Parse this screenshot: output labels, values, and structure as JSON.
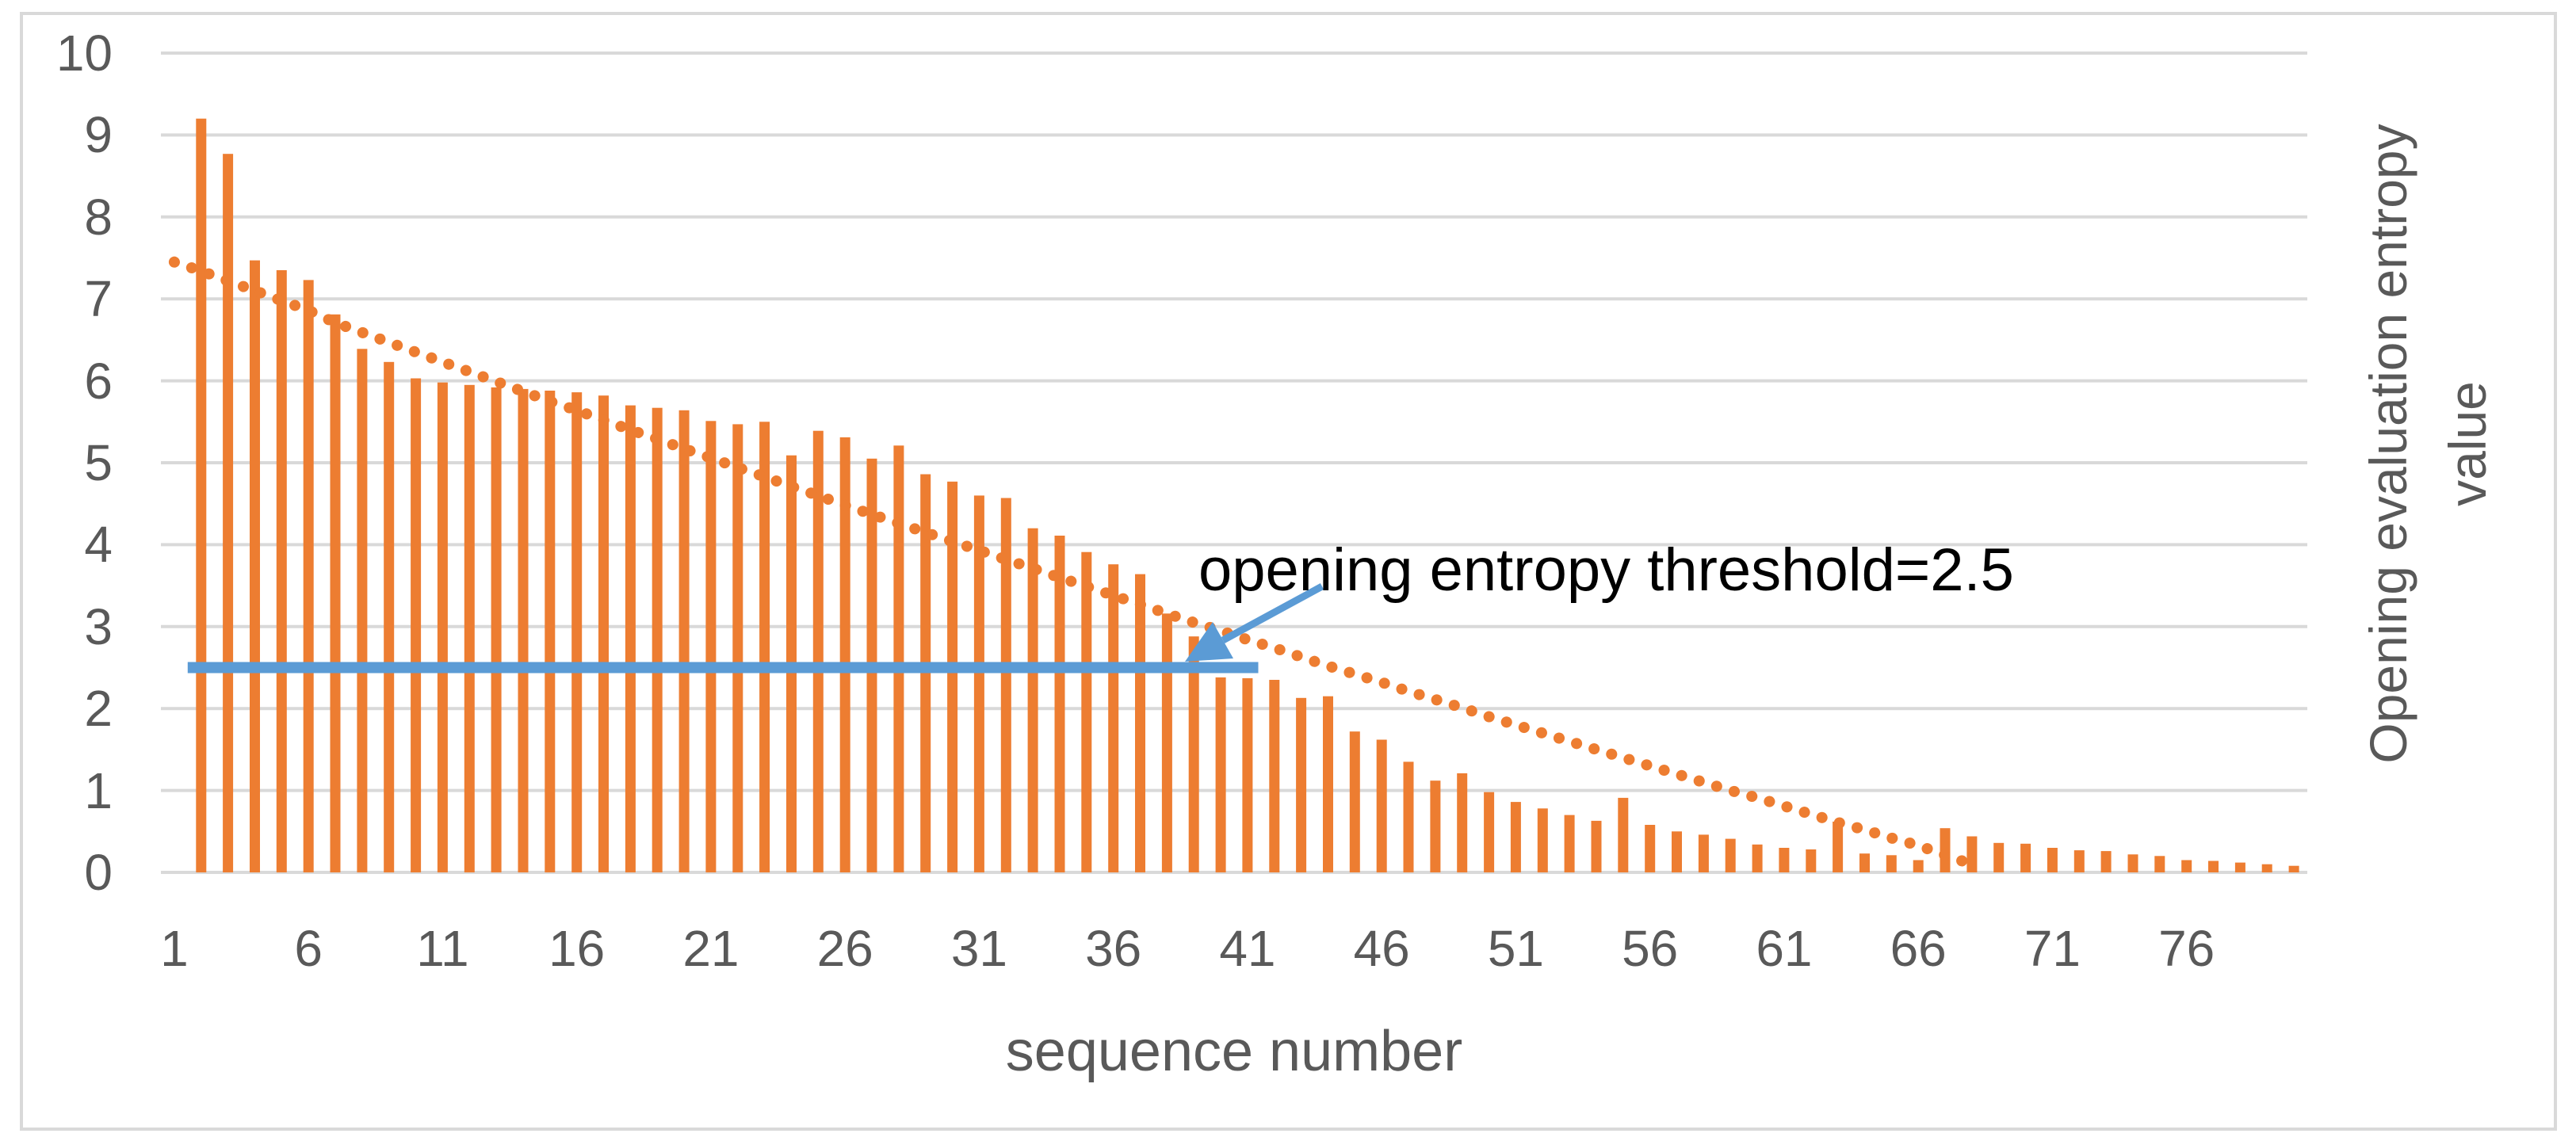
{
  "chart_data": {
    "type": "bar",
    "title": "",
    "xlabel": "sequence number",
    "ylabel": "Opening evaluation entropy value",
    "ylabel_lines": [
      "Opening evaluation entropy",
      "value"
    ],
    "ylim": [
      0,
      10
    ],
    "y_ticks": [
      0,
      1,
      2,
      3,
      4,
      5,
      6,
      7,
      8,
      9,
      10
    ],
    "x_tick_labels": [
      "1",
      "6",
      "11",
      "16",
      "21",
      "26",
      "31",
      "36",
      "41",
      "46",
      "51",
      "56",
      "61",
      "66",
      "71",
      "76"
    ],
    "x_tick_step": 5,
    "n_slots": 80,
    "bar_start_slot": 2,
    "grid": true,
    "legend_position": "none",
    "series": [
      {
        "name": "opening evaluation entropy value",
        "type": "bar",
        "color": "#ED7D31",
        "values": [
          9.2,
          8.77,
          7.47,
          7.35,
          7.23,
          6.81,
          6.39,
          6.23,
          6.03,
          5.98,
          5.95,
          5.92,
          5.9,
          5.88,
          5.86,
          5.82,
          5.7,
          5.67,
          5.64,
          5.51,
          5.47,
          5.5,
          5.09,
          5.39,
          5.31,
          5.05,
          5.21,
          4.86,
          4.77,
          4.6,
          4.57,
          4.2,
          4.11,
          3.91,
          3.76,
          3.64,
          3.16,
          2.88,
          2.38,
          2.37,
          2.35,
          2.13,
          2.15,
          1.72,
          1.62,
          1.35,
          1.12,
          1.21,
          0.98,
          0.86,
          0.78,
          0.7,
          0.63,
          0.91,
          0.58,
          0.5,
          0.46,
          0.41,
          0.34,
          0.3,
          0.28,
          0.62,
          0.23,
          0.21,
          0.15,
          0.54,
          0.44,
          0.36,
          0.35,
          0.3,
          0.27,
          0.26,
          0.22,
          0.2,
          0.15,
          0.14,
          0.12,
          0.1,
          0.08
        ]
      },
      {
        "name": "opening entropy threshold",
        "type": "hline",
        "color": "#5B9BD5",
        "y": 2.5,
        "slot_start": 1.5,
        "slot_end": 41.4,
        "stroke_width": 14
      },
      {
        "name": "trendline",
        "type": "dotted_line",
        "color": "#ED7D31",
        "start_slot": 1,
        "values": [
          7.45,
          7.34,
          7.22,
          7.1,
          6.98,
          6.86,
          6.71,
          6.59,
          6.47,
          6.35,
          6.23,
          6.11,
          5.99,
          5.87,
          5.75,
          5.64,
          5.52,
          5.4,
          5.29,
          5.17,
          5.06,
          4.94,
          4.83,
          4.71,
          4.6,
          4.48,
          4.37,
          4.26,
          4.15,
          4.04,
          3.93,
          3.82,
          3.71,
          3.6,
          3.49,
          3.38,
          3.27,
          3.16,
          3.05,
          2.95,
          2.84,
          2.74,
          2.63,
          2.52,
          2.42,
          2.32,
          2.21,
          2.11,
          2.01,
          1.9,
          1.8,
          1.7,
          1.6,
          1.5,
          1.4,
          1.3,
          1.2,
          1.1,
          1.0,
          0.91,
          0.81,
          0.71,
          0.61,
          0.52,
          0.42,
          0.33,
          0.21,
          0.1
        ]
      }
    ],
    "annotation": {
      "text": "opening entropy threshold=2.5",
      "arrow_color": "#5B9BD5"
    }
  },
  "colors": {
    "background": "#FFFFFF",
    "border": "#D9D9D9",
    "grid": "#D9D9D9",
    "axis_text": "#595959",
    "annotation_text": "#000000",
    "bar": "#ED7D31",
    "threshold": "#5B9BD5"
  }
}
